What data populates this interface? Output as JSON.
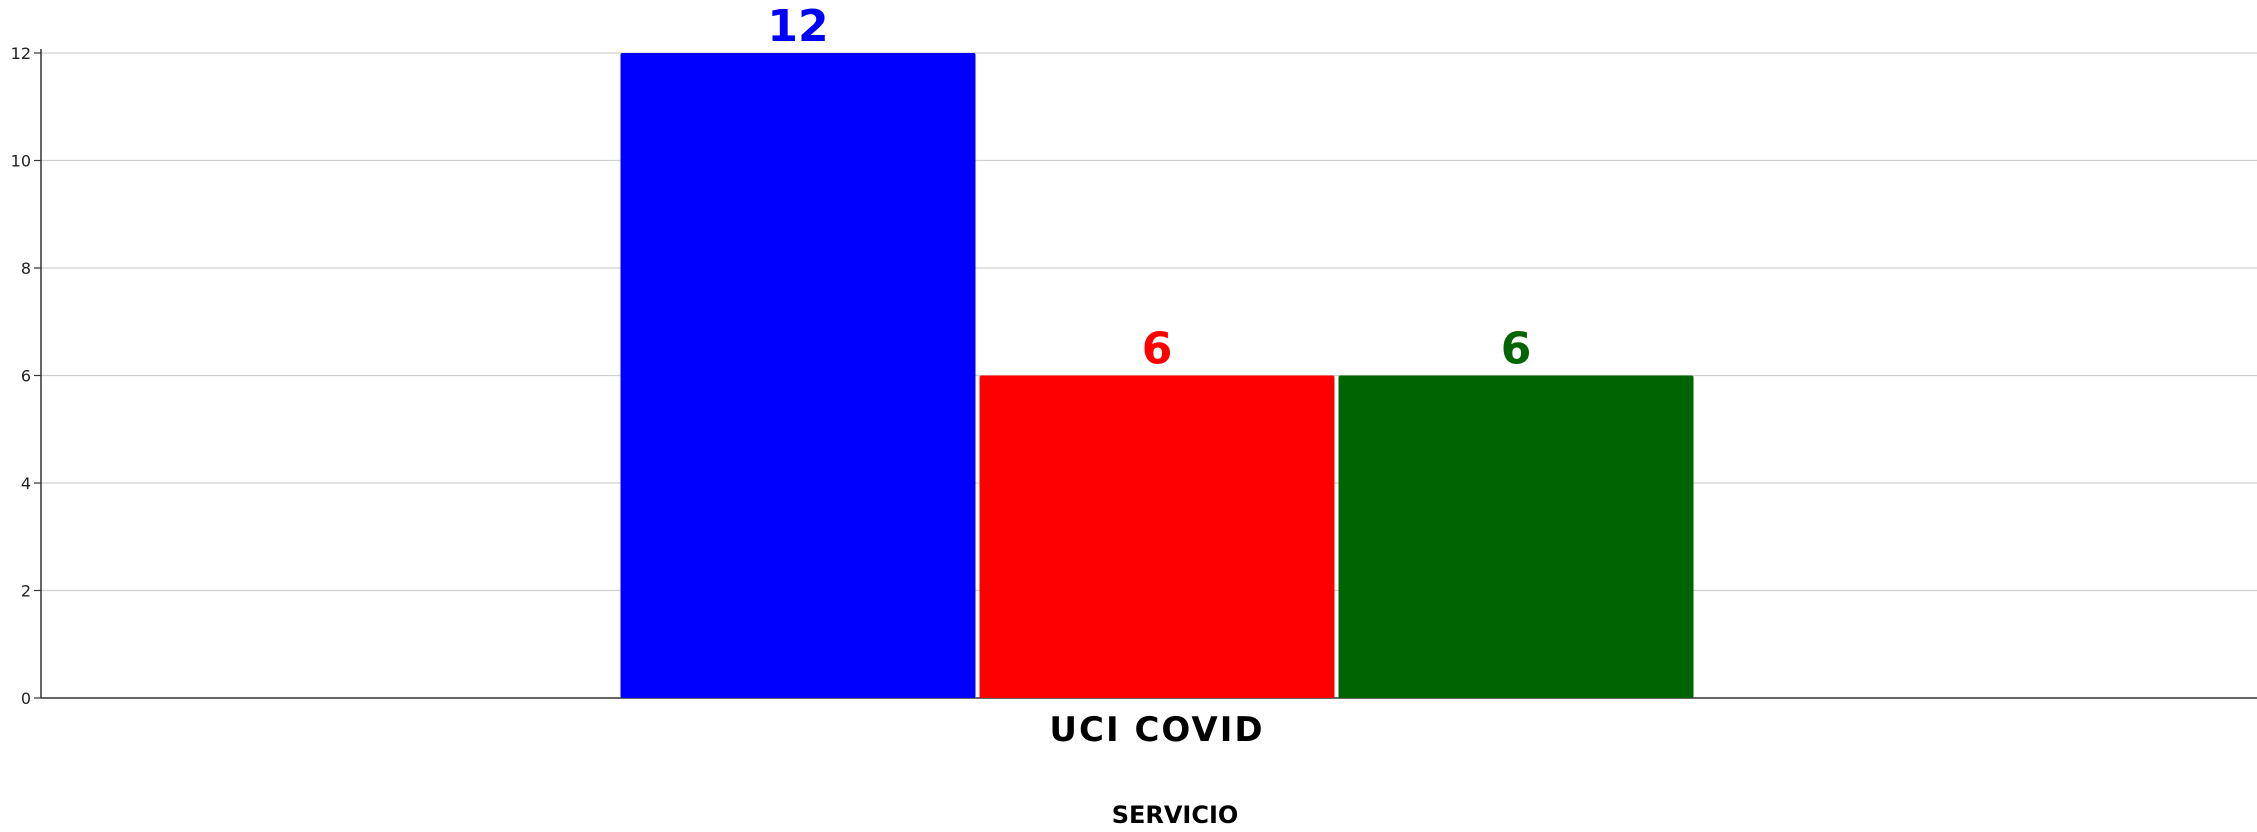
{
  "chart_data": {
    "type": "bar",
    "title": "",
    "xlabel": "SERVICIO",
    "ylabel": "",
    "categories": [
      "UCI COVID"
    ],
    "ylim": [
      0,
      12
    ],
    "yticks": [
      0,
      2,
      4,
      6,
      8,
      10,
      12
    ],
    "grid": true,
    "series": [
      {
        "values": [
          12
        ],
        "color": "#0000ff"
      },
      {
        "values": [
          6
        ],
        "color": "#ff0000"
      },
      {
        "values": [
          6
        ],
        "color": "#006400"
      }
    ]
  }
}
